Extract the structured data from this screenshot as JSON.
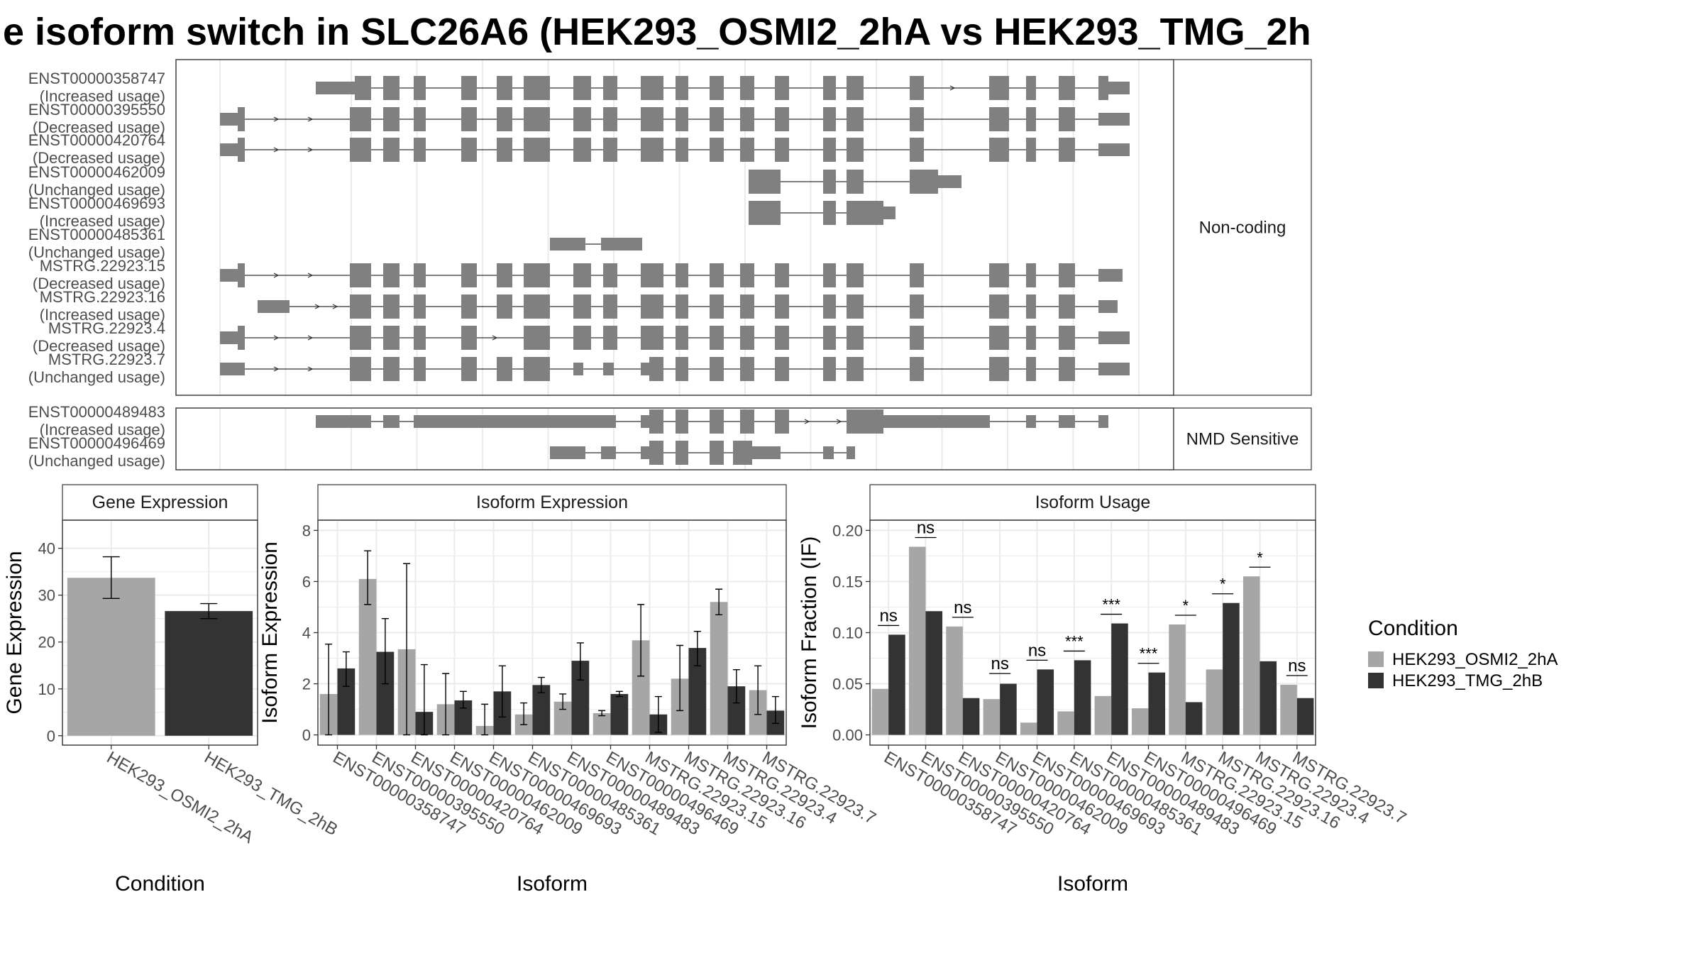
{
  "page_title": "e isoform switch in SLC26A6 (HEK293_OSMI2_2hA vs HEK293_TMG_2h",
  "colors": {
    "gene_model": "#808080",
    "condition_a": "#a6a6a6",
    "condition_b": "#333333",
    "grid": "#ebebeb"
  },
  "structure": {
    "facets": [
      "Non-coding",
      "NMD Sensitive"
    ],
    "transcripts": [
      {
        "id": "ENST00000358747",
        "usage": "(Increased usage)",
        "facet": "Non-coding"
      },
      {
        "id": "ENST00000395550",
        "usage": "(Decreased usage)",
        "facet": "Non-coding"
      },
      {
        "id": "ENST00000420764",
        "usage": "(Decreased usage)",
        "facet": "Non-coding"
      },
      {
        "id": "ENST00000462009",
        "usage": "(Unchanged usage)",
        "facet": "Non-coding"
      },
      {
        "id": "ENST00000469693",
        "usage": "(Increased usage)",
        "facet": "Non-coding"
      },
      {
        "id": "ENST00000485361",
        "usage": "(Unchanged usage)",
        "facet": "Non-coding"
      },
      {
        "id": "MSTRG.22923.15",
        "usage": "(Decreased usage)",
        "facet": "Non-coding"
      },
      {
        "id": "MSTRG.22923.16",
        "usage": "(Increased usage)",
        "facet": "Non-coding"
      },
      {
        "id": "MSTRG.22923.4",
        "usage": "(Decreased usage)",
        "facet": "Non-coding"
      },
      {
        "id": "MSTRG.22923.7",
        "usage": "(Unchanged usage)",
        "facet": "Non-coding"
      },
      {
        "id": "ENST00000489483",
        "usage": "(Increased usage)",
        "facet": "NMD Sensitive"
      },
      {
        "id": "ENST00000496469",
        "usage": "(Unchanged usage)",
        "facet": "NMD Sensitive"
      }
    ]
  },
  "chart_data": [
    {
      "type": "bar",
      "title": "Gene Expression",
      "xlabel": "Condition",
      "ylabel": "Gene Expression",
      "ylim": [
        -2,
        46
      ],
      "yticks": [
        0,
        10,
        20,
        30,
        40
      ],
      "categories": [
        "HEK293_OSMI2_2hA",
        "HEK293_TMG_2hB"
      ],
      "values": [
        33.7,
        26.6
      ],
      "errors": [
        [
          29.3,
          38.2
        ],
        [
          25,
          28.2
        ]
      ]
    },
    {
      "type": "bar",
      "title": "Isoform Expression",
      "xlabel": "Isoform",
      "ylabel": "Isoform Expression",
      "ylim": [
        -0.4,
        8.4
      ],
      "yticks": [
        0,
        2,
        4,
        6,
        8
      ],
      "categories": [
        "ENST00000358747",
        "ENST00000395550",
        "ENST00000420764",
        "ENST00000462009",
        "ENST00000469693",
        "ENST00000485361",
        "ENST00000489483",
        "ENST00000496469",
        "MSTRG.22923.15",
        "MSTRG.22923.16",
        "MSTRG.22923.4",
        "MSTRG.22923.7"
      ],
      "series": [
        {
          "name": "HEK293_OSMI2_2hA",
          "values": [
            1.6,
            6.1,
            3.35,
            1.2,
            0.35,
            0.8,
            1.3,
            0.85,
            3.7,
            2.2,
            5.2,
            1.75
          ],
          "errors": [
            [
              0,
              3.55
            ],
            [
              5.1,
              7.2
            ],
            [
              0,
              6.7
            ],
            [
              0,
              2.4
            ],
            [
              0,
              1.2
            ],
            [
              0.4,
              1.25
            ],
            [
              1,
              1.6
            ],
            [
              0.75,
              0.95
            ],
            [
              2.3,
              5.1
            ],
            [
              0.95,
              3.5
            ],
            [
              4.7,
              5.7
            ],
            [
              0.8,
              2.7
            ]
          ]
        },
        {
          "name": "HEK293_TMG_2hB",
          "values": [
            2.6,
            3.25,
            0.9,
            1.35,
            1.7,
            1.95,
            2.9,
            1.6,
            0.8,
            3.4,
            1.9,
            0.95
          ],
          "errors": [
            [
              1.9,
              3.25
            ],
            [
              2,
              4.55
            ],
            [
              0,
              2.75
            ],
            [
              1.05,
              1.7
            ],
            [
              0.7,
              2.7
            ],
            [
              1.65,
              2.25
            ],
            [
              2.15,
              3.6
            ],
            [
              1.5,
              1.7
            ],
            [
              0.1,
              1.5
            ],
            [
              2.7,
              4.05
            ],
            [
              1.25,
              2.55
            ],
            [
              0.45,
              1.5
            ]
          ]
        }
      ]
    },
    {
      "type": "bar",
      "title": "Isoform Usage",
      "xlabel": "Isoform",
      "ylabel": "Isoform Fraction (IF)",
      "ylim": [
        -0.01,
        0.21
      ],
      "yticks": [
        0,
        0.05,
        0.1,
        0.15,
        0.2
      ],
      "ytick_labels": [
        "0.00",
        "0.05",
        "0.10",
        "0.15",
        "0.20"
      ],
      "categories": [
        "ENST00000358747",
        "ENST00000395550",
        "ENST00000420764",
        "ENST00000462009",
        "ENST00000469693",
        "ENST00000485361",
        "ENST00000489483",
        "ENST00000496469",
        "MSTRG.22923.15",
        "MSTRG.22923.16",
        "MSTRG.22923.4",
        "MSTRG.22923.7"
      ],
      "series": [
        {
          "name": "HEK293_OSMI2_2hA",
          "values": [
            0.045,
            0.184,
            0.106,
            0.035,
            0.012,
            0.023,
            0.038,
            0.026,
            0.108,
            0.064,
            0.155,
            0.049
          ]
        },
        {
          "name": "HEK293_TMG_2hB",
          "values": [
            0.098,
            0.121,
            0.036,
            0.05,
            0.064,
            0.073,
            0.109,
            0.061,
            0.032,
            0.129,
            0.072,
            0.036
          ]
        }
      ],
      "significance": [
        "ns",
        "ns",
        "ns",
        "ns",
        "ns",
        "***",
        "***",
        "***",
        "*",
        "*",
        "*",
        "ns"
      ],
      "significance_level": [
        0.107,
        0.193,
        0.115,
        0.06,
        0.073,
        0.082,
        0.118,
        0.07,
        0.117,
        0.138,
        0.164,
        0.058
      ]
    }
  ],
  "legend": {
    "title": "Condition",
    "entries": [
      "HEK293_OSMI2_2hA",
      "HEK293_TMG_2hB"
    ]
  }
}
